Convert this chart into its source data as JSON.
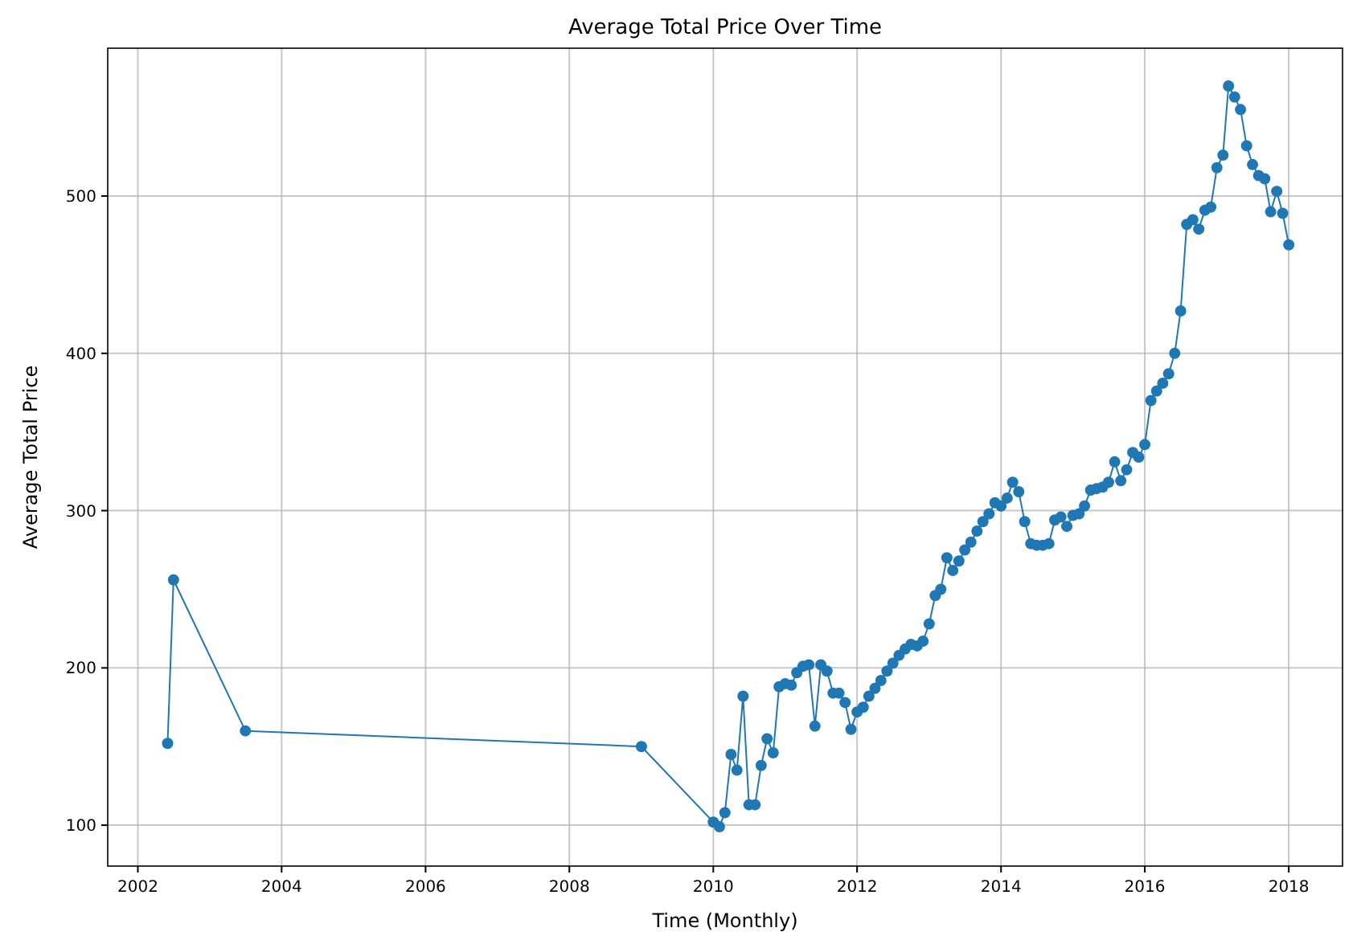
{
  "chart_data": {
    "type": "line",
    "title": "Average Total Price Over Time",
    "xlabel": "Time (Monthly)",
    "ylabel": "Average Total Price",
    "x": [
      "2002-06",
      "2002-07",
      "2003-07",
      "2009-01",
      "2010-01",
      "2010-02",
      "2010-03",
      "2010-04",
      "2010-05",
      "2010-06",
      "2010-07",
      "2010-08",
      "2010-09",
      "2010-10",
      "2010-11",
      "2010-12",
      "2011-01",
      "2011-02",
      "2011-03",
      "2011-04",
      "2011-05",
      "2011-06",
      "2011-07",
      "2011-08",
      "2011-09",
      "2011-10",
      "2011-11",
      "2011-12",
      "2012-01",
      "2012-02",
      "2012-03",
      "2012-04",
      "2012-05",
      "2012-06",
      "2012-07",
      "2012-08",
      "2012-09",
      "2012-10",
      "2012-11",
      "2012-12",
      "2013-01",
      "2013-02",
      "2013-03",
      "2013-04",
      "2013-05",
      "2013-06",
      "2013-07",
      "2013-08",
      "2013-09",
      "2013-10",
      "2013-11",
      "2013-12",
      "2014-01",
      "2014-02",
      "2014-03",
      "2014-04",
      "2014-05",
      "2014-06",
      "2014-07",
      "2014-08",
      "2014-09",
      "2014-10",
      "2014-11",
      "2014-12",
      "2015-01",
      "2015-02",
      "2015-03",
      "2015-04",
      "2015-05",
      "2015-06",
      "2015-07",
      "2015-08",
      "2015-09",
      "2015-10",
      "2015-11",
      "2015-12",
      "2016-01",
      "2016-02",
      "2016-03",
      "2016-04",
      "2016-05",
      "2016-06",
      "2016-07",
      "2016-08",
      "2016-09",
      "2016-10",
      "2016-11",
      "2016-12",
      "2017-01",
      "2017-02",
      "2017-03",
      "2017-04",
      "2017-05",
      "2017-06",
      "2017-07",
      "2017-08",
      "2017-09",
      "2017-10",
      "2017-11",
      "2017-12",
      "2018-01"
    ],
    "series": [
      {
        "color": "#1f77b4",
        "values": [
          152,
          256,
          160,
          150,
          102,
          99,
          108,
          145,
          135,
          182,
          113,
          113,
          138,
          155,
          146,
          188,
          190,
          189,
          197,
          201,
          202,
          163,
          202,
          198,
          184,
          184,
          178,
          161,
          172,
          175,
          182,
          187,
          192,
          198,
          203,
          208,
          212,
          215,
          214,
          217,
          228,
          246,
          250,
          270,
          262,
          268,
          275,
          280,
          287,
          293,
          298,
          305,
          303,
          308,
          318,
          312,
          293,
          279,
          278,
          278,
          279,
          294,
          296,
          290,
          297,
          298,
          303,
          313,
          314,
          315,
          318,
          331,
          319,
          326,
          337,
          334,
          342,
          370,
          376,
          381,
          387,
          400,
          427,
          482,
          485,
          479,
          491,
          493,
          518,
          526,
          570,
          563,
          555,
          532,
          520,
          513,
          511,
          490,
          503,
          489,
          469
        ]
      }
    ],
    "xlim": [
      "2001-08",
      "2018-10"
    ],
    "ylim": [
      74,
      594
    ],
    "xticks": [
      "2002",
      "2004",
      "2006",
      "2008",
      "2010",
      "2012",
      "2014",
      "2016",
      "2018"
    ],
    "yticks": [
      100,
      200,
      300,
      400,
      500
    ],
    "grid": true,
    "marker": "circle",
    "line_style": "solid"
  }
}
